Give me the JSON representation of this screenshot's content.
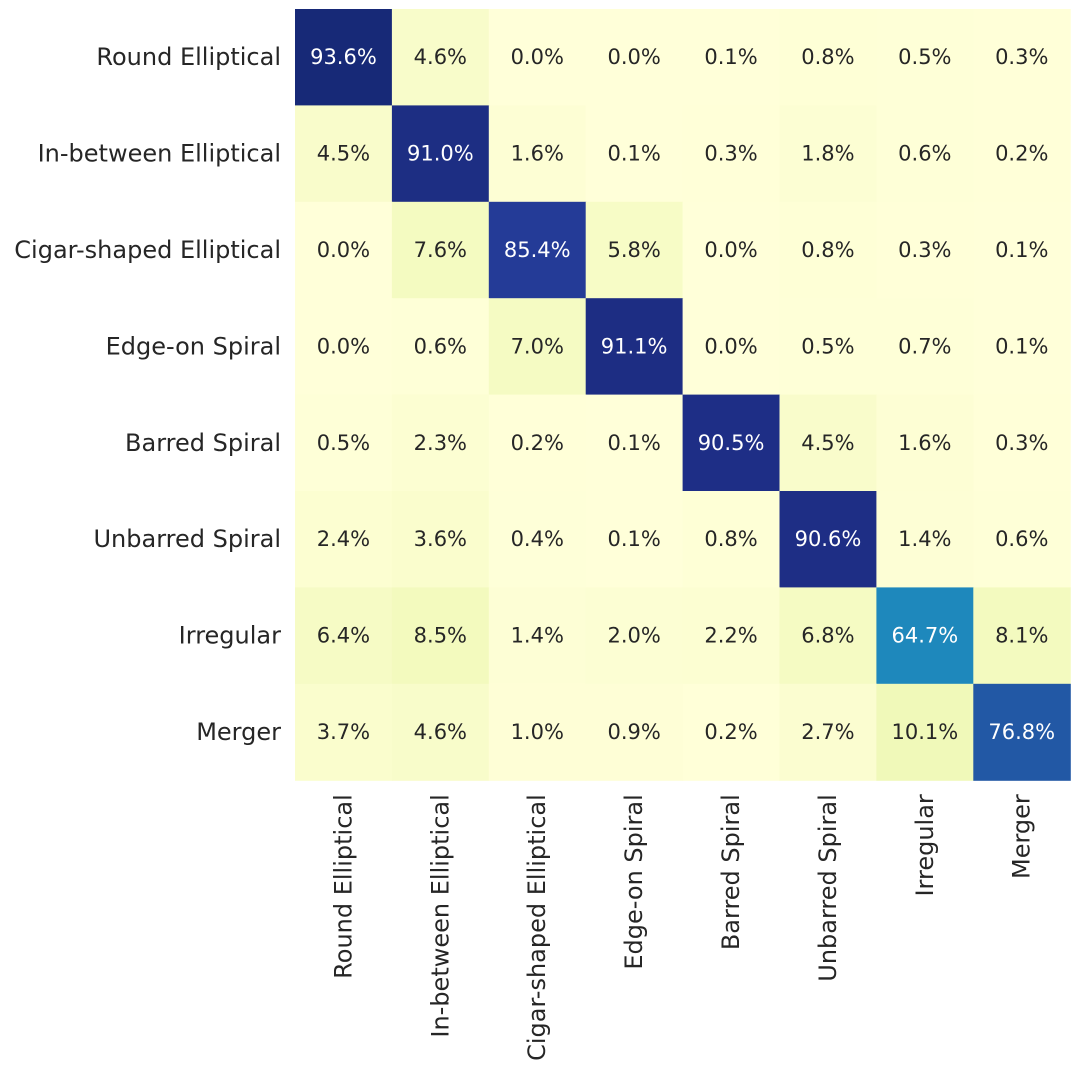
{
  "chart_data": {
    "type": "heatmap",
    "title": "",
    "xlabel": "",
    "ylabel": "",
    "rows": [
      "Round Elliptical",
      "In-between Elliptical",
      "Cigar-shaped Elliptical",
      "Edge-on Spiral",
      "Barred Spiral",
      "Unbarred Spiral",
      "Irregular",
      "Merger"
    ],
    "columns": [
      "Round Elliptical",
      "In-between Elliptical",
      "Cigar-shaped Elliptical",
      "Edge-on Spiral",
      "Barred Spiral",
      "Unbarred Spiral",
      "Irregular",
      "Merger"
    ],
    "values": [
      [
        93.6,
        4.6,
        0.0,
        0.0,
        0.1,
        0.8,
        0.5,
        0.3
      ],
      [
        4.5,
        91.0,
        1.6,
        0.1,
        0.3,
        1.8,
        0.6,
        0.2
      ],
      [
        0.0,
        7.6,
        85.4,
        5.8,
        0.0,
        0.8,
        0.3,
        0.1
      ],
      [
        0.0,
        0.6,
        7.0,
        91.1,
        0.0,
        0.5,
        0.7,
        0.1
      ],
      [
        0.5,
        2.3,
        0.2,
        0.1,
        90.5,
        4.5,
        1.6,
        0.3
      ],
      [
        2.4,
        3.6,
        0.4,
        0.1,
        0.8,
        90.6,
        1.4,
        0.6
      ],
      [
        6.4,
        8.5,
        1.4,
        2.0,
        2.2,
        6.8,
        64.7,
        8.1
      ],
      [
        3.7,
        4.6,
        1.0,
        0.9,
        0.2,
        2.7,
        10.1,
        76.8
      ]
    ],
    "value_format": "percent_1dp",
    "colormap": "YlGnBu",
    "value_range": [
      0,
      100
    ],
    "colorbar": false,
    "grid": false
  }
}
